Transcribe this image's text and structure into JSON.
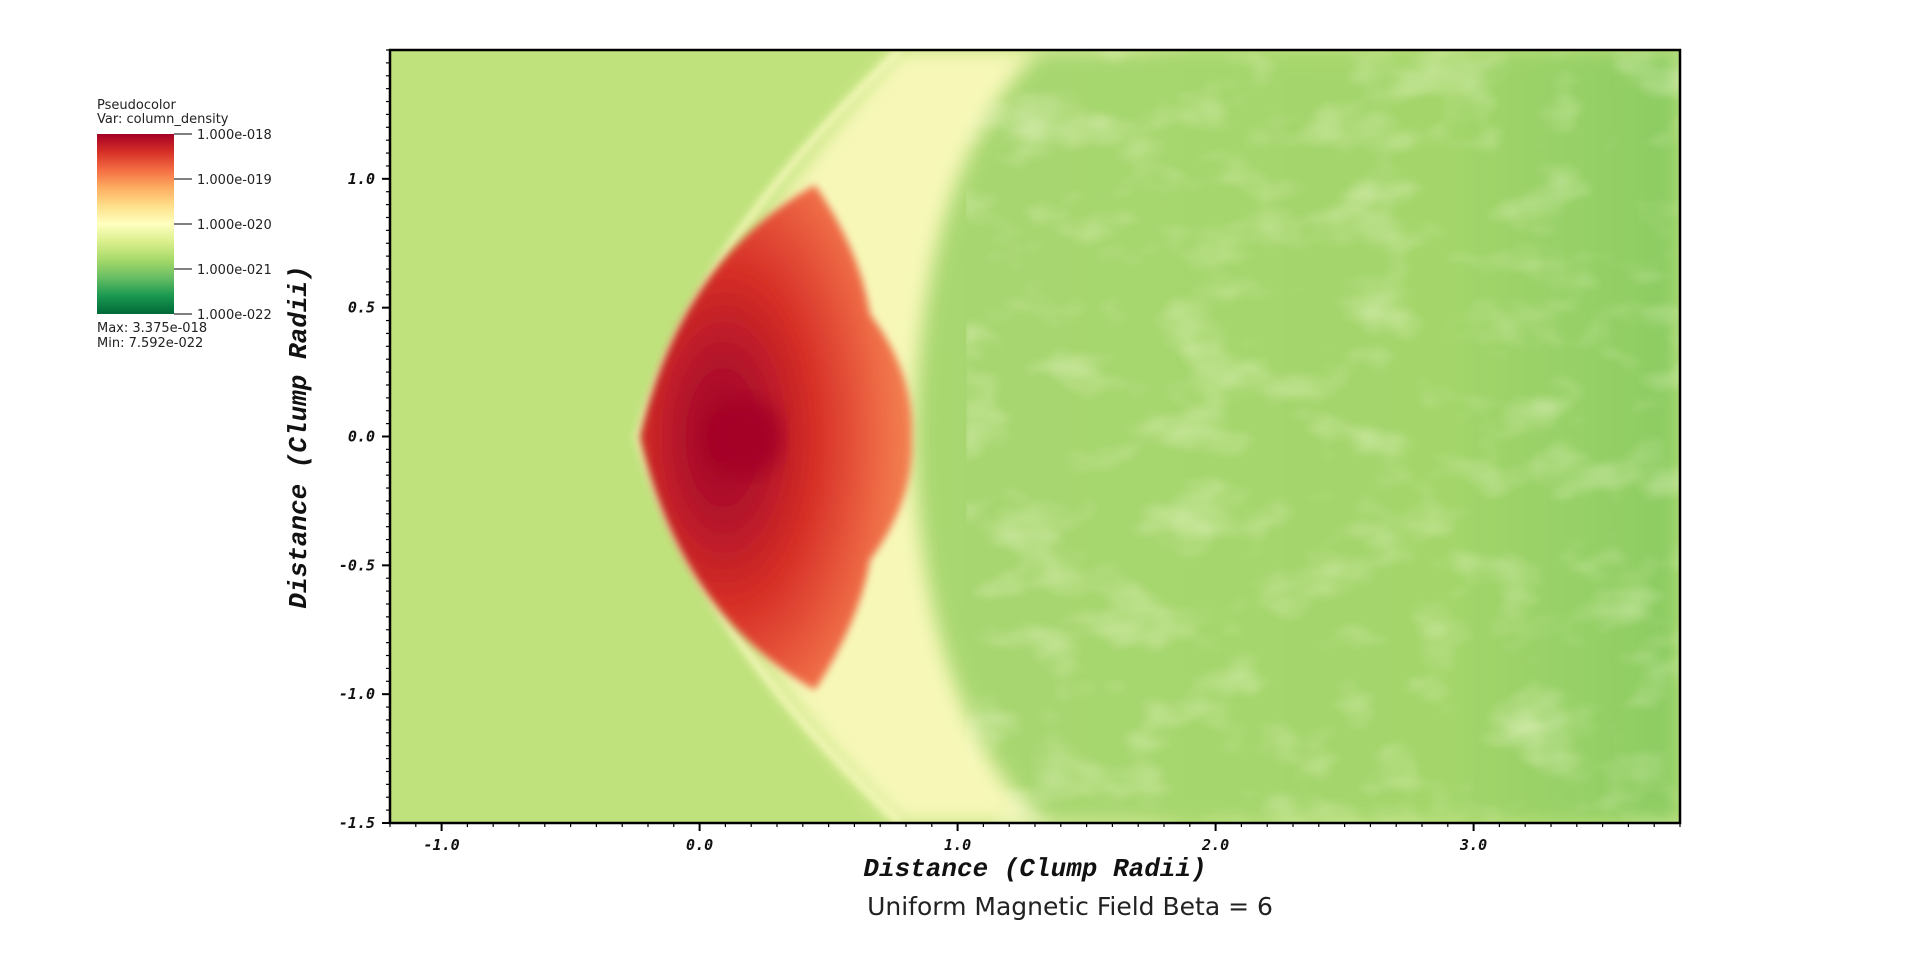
{
  "legend": {
    "title": "Pseudocolor",
    "var_label": "Var: column_density",
    "tick_labels": [
      "1.000e-018",
      "1.000e-019",
      "1.000e-020",
      "1.000e-021",
      "1.000e-022"
    ],
    "max_label": "Max:  3.375e-018",
    "min_label": "Min:  7.592e-022",
    "colors": [
      "#a50026",
      "#d73027",
      "#f46d43",
      "#fdae61",
      "#fee08b",
      "#ffffbf",
      "#d9ef8b",
      "#a6d96a",
      "#66bd63",
      "#1a9850",
      "#006837"
    ]
  },
  "caption": "Uniform Magnetic Field Beta = 6",
  "chart_data": {
    "type": "heatmap",
    "variable": "column_density",
    "xlabel": "Distance (Clump Radii)",
    "ylabel": "Distance (Clump Radii)",
    "xlim": [
      -1.2,
      3.8
    ],
    "ylim": [
      -1.5,
      1.5
    ],
    "xticks": [
      -1.0,
      0.0,
      1.0,
      2.0,
      3.0
    ],
    "xtick_labels": [
      "-1.0",
      "0.0",
      "1.0",
      "2.0",
      "3.0"
    ],
    "yticks": [
      1.0,
      0.5,
      0.0,
      -0.5,
      -1.0,
      -1.5
    ],
    "ytick_labels": [
      "1.0",
      "0.5",
      "0.0",
      "-0.5",
      "-1.0",
      "-1.5"
    ],
    "color_scale": "log",
    "value_range": [
      7.592e-22,
      3.375e-18
    ],
    "colorbar_range": [
      1e-22,
      1e-18
    ],
    "peak_location": [
      0.17,
      0.0
    ],
    "bow_shock_apex_x": -0.23,
    "bow_shock_top_x": 0.8,
    "ambient_color": "#c0e27d",
    "peak_color": "#a50026",
    "title": ""
  }
}
